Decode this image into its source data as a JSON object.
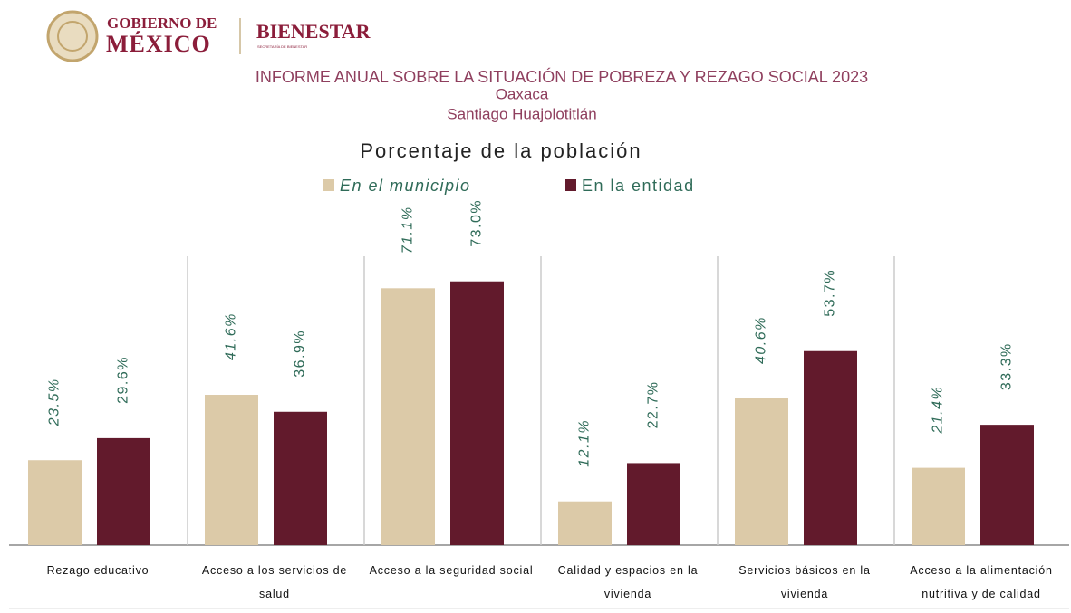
{
  "header": {
    "gov_line1": "GOBIERNO DE",
    "gov_line2": "MÉXICO",
    "agency": "BIENESTAR",
    "agency_sub": "SECRETARÍA DE BIENESTAR"
  },
  "report": {
    "title": "INFORME ANUAL SOBRE LA SITUACIÓN DE POBREZA Y REZAGO SOCIAL 2023",
    "state": "Oaxaca",
    "municipality": "Santiago Huajolotitlán"
  },
  "chart_data": {
    "type": "bar",
    "title": "Porcentaje de la población",
    "categories": [
      "Rezago educativo",
      "Acceso a los servicios de salud",
      "Acceso a la seguridad social",
      "Calidad y espacios en la vivienda",
      "Servicios básicos en la vivienda",
      "Acceso a la alimentación nutritiva y de calidad"
    ],
    "series": [
      {
        "name": "En el municipio",
        "color": "#dccaa8",
        "values": [
          23.5,
          41.6,
          71.1,
          12.1,
          40.6,
          21.4
        ],
        "value_labels": [
          "23.5%",
          "41.6%",
          "71.1%",
          "12.1%",
          "40.6%",
          "21.4%"
        ]
      },
      {
        "name": "En la entidad",
        "color": "#621a2c",
        "values": [
          29.6,
          36.9,
          73.0,
          22.7,
          53.7,
          33.3
        ],
        "value_labels": [
          "29.6%",
          "36.9%",
          "73.0%",
          "22.7%",
          "53.7%",
          "33.3%"
        ]
      }
    ]
  }
}
